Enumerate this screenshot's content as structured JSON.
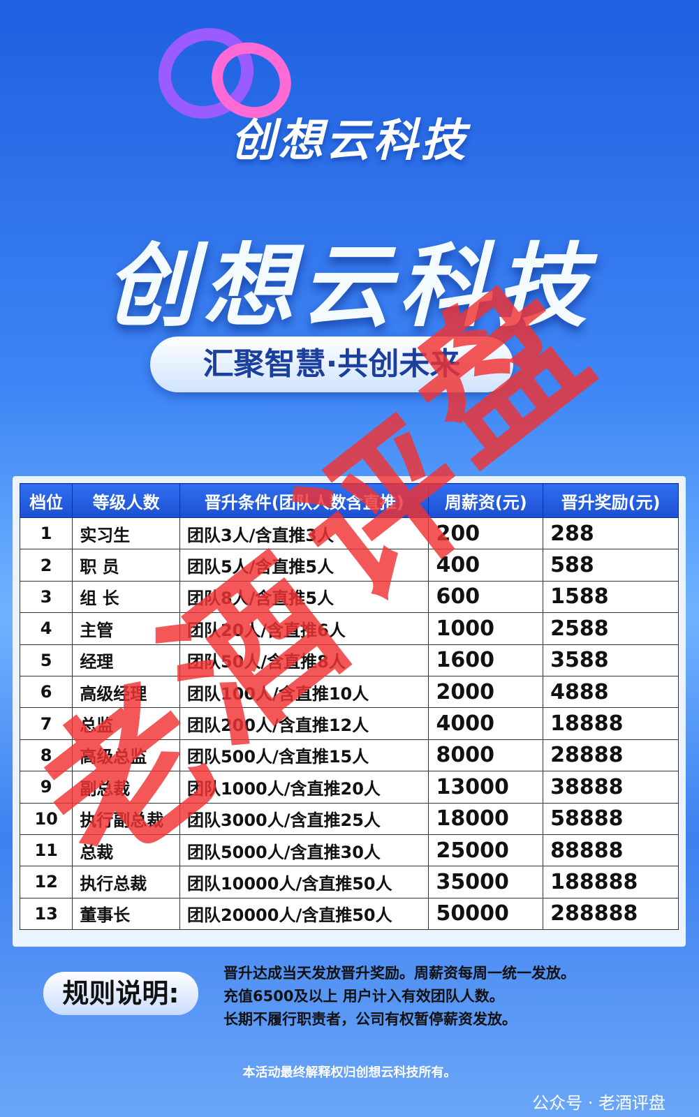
{
  "header": {
    "logo_text": "创想云科技",
    "brand_title": "创想云科技",
    "slogan": "汇聚智慧·共创未来"
  },
  "table": {
    "columns": [
      "档位",
      "等级人数",
      "晋升条件(团队人数含直推)",
      "周薪资(元)",
      "晋升奖励(元)"
    ],
    "rows": [
      [
        1,
        "实习生",
        "团队3人/含直推3人",
        200,
        288
      ],
      [
        2,
        "职 员",
        "团队5人/含直推5人",
        400,
        588
      ],
      [
        3,
        "组 长",
        "团队8人/含直推5人",
        600,
        1588
      ],
      [
        4,
        "主管",
        "团队20人/含直推6人",
        1000,
        2588
      ],
      [
        5,
        "经理",
        "团队50人/含直推8人",
        1600,
        3588
      ],
      [
        6,
        "高级经理",
        "团队100人/含直推10人",
        2000,
        4888
      ],
      [
        7,
        "总监",
        "团队200人/含直推12人",
        4000,
        18888
      ],
      [
        8,
        "高级总监",
        "团队500人/含直推15人",
        8000,
        28888
      ],
      [
        9,
        "副总裁",
        "团队1000人/含直推20人",
        13000,
        38888
      ],
      [
        10,
        "执行副总裁",
        "团队3000人/含直推25人",
        18000,
        58888
      ],
      [
        11,
        "总裁",
        "团队5000人/含直推30人",
        25000,
        88888
      ],
      [
        12,
        "执行总裁",
        "团队10000人/含直推50人",
        35000,
        188888
      ],
      [
        13,
        "董事长",
        "团队20000人/含直推50人",
        50000,
        288888
      ]
    ]
  },
  "rules": {
    "label": "规则说明:",
    "lines": [
      "晋升达成当天发放晋升奖励。周薪资每周一统一发放。",
      "充值6500及以上 用户计入有效团队人数。",
      "长期不履行职责者，公司有权暂停薪资发放。"
    ]
  },
  "footer": {
    "note": "本活动最终解释权归创想云科技所有。",
    "account": "公众号 · 老酒评盘"
  },
  "watermark": {
    "text": "老酒评盘"
  }
}
